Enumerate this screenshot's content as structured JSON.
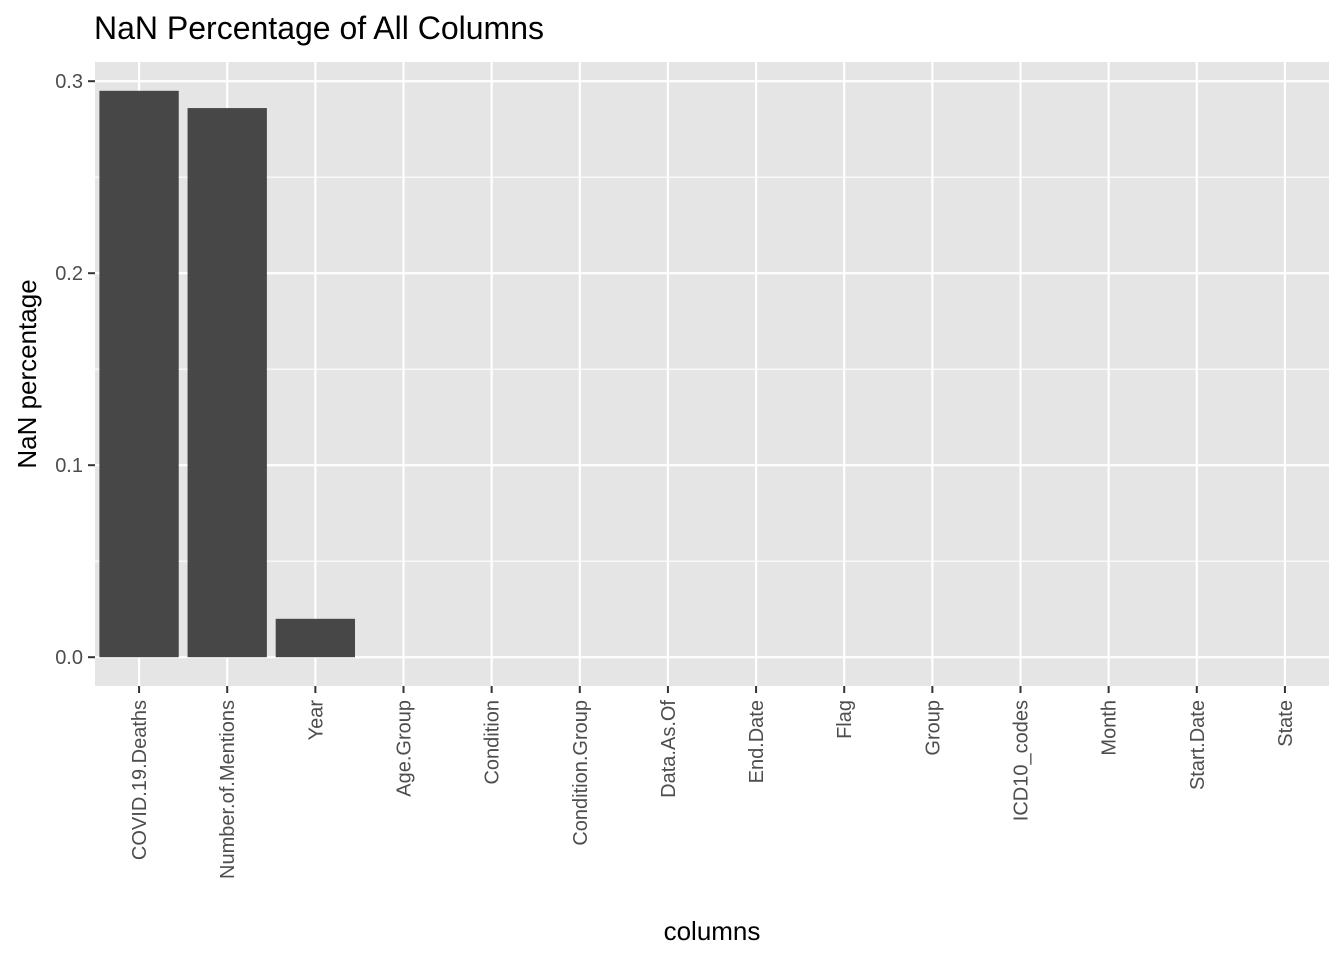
{
  "chart_data": {
    "type": "bar",
    "title": "NaN Percentage of All Columns",
    "xlabel": "columns",
    "ylabel": "NaN percentage",
    "categories": [
      "COVID.19.Deaths",
      "Number.of.Mentions",
      "Year",
      "Age.Group",
      "Condition",
      "Condition.Group",
      "Data.As.Of",
      "End.Date",
      "Flag",
      "Group",
      "ICD10_codes",
      "Month",
      "Start.Date",
      "State"
    ],
    "values": [
      0.295,
      0.286,
      0.02,
      0,
      0,
      0,
      0,
      0,
      0,
      0,
      0,
      0,
      0,
      0
    ],
    "ylim": [
      -0.015,
      0.31
    ],
    "yticks": [
      0.0,
      0.1,
      0.2,
      0.3
    ],
    "ytick_labels": [
      "0.0",
      "0.1",
      "0.2",
      "0.3"
    ],
    "grid": true,
    "legend": "none",
    "colors": {
      "bar": "#474747",
      "panel": "#e5e5e5",
      "grid": "#ffffff"
    }
  }
}
